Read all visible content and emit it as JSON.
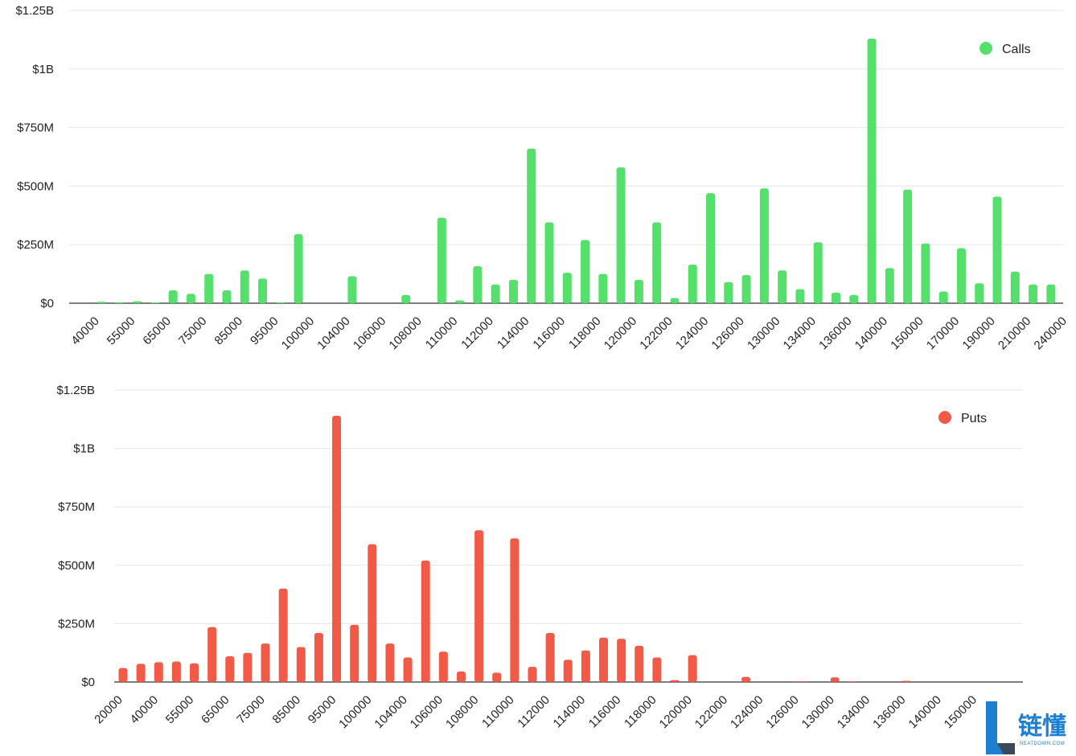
{
  "legend_labels": {
    "calls": "Calls",
    "puts": "Puts"
  },
  "watermark": {
    "text": "链懂",
    "sub": "NEATDOWN.COM"
  },
  "colors": {
    "calls": "#55e06c",
    "puts": "#f05a47",
    "grid": "#e6e6e6",
    "watermark": "#1d7fd1"
  },
  "chart_data": [
    {
      "type": "bar",
      "name": "calls-chart",
      "title": "",
      "ylim": [
        0,
        1250000000
      ],
      "yticks": [
        {
          "value": 0,
          "label": "$0"
        },
        {
          "value": 250000000,
          "label": "$250M"
        },
        {
          "value": 500000000,
          "label": "$500M"
        },
        {
          "value": 750000000,
          "label": "$750M"
        },
        {
          "value": 1000000000,
          "label": "$1B"
        },
        {
          "value": 1250000000,
          "label": "$1.25B"
        }
      ],
      "grid": true,
      "legend": "top-right",
      "xtick_labels": [
        "40000",
        "55000",
        "65000",
        "75000",
        "85000",
        "95000",
        "100000",
        "104000",
        "106000",
        "108000",
        "110000",
        "112000",
        "114000",
        "116000",
        "118000",
        "120000",
        "122000",
        "124000",
        "126000",
        "130000",
        "134000",
        "136000",
        "140000",
        "150000",
        "170000",
        "190000",
        "210000",
        "240000"
      ],
      "series": [
        {
          "name": "Calls",
          "values": [
            6,
            4,
            8,
            3,
            55,
            40,
            125,
            55,
            140,
            105,
            4,
            295,
            0,
            0,
            115,
            0,
            0,
            35,
            0,
            365,
            12,
            158,
            80,
            100,
            660,
            345,
            130,
            270,
            125,
            580,
            100,
            345,
            22,
            165,
            470,
            90,
            120,
            490,
            140,
            60,
            260,
            45,
            35,
            1130,
            150,
            485,
            255,
            50,
            235,
            85,
            455,
            135,
            80,
            80
          ]
        }
      ]
    },
    {
      "type": "bar",
      "name": "puts-chart",
      "title": "",
      "ylim": [
        0,
        1250000000
      ],
      "yticks": [
        {
          "value": 0,
          "label": "$0"
        },
        {
          "value": 250000000,
          "label": "$250M"
        },
        {
          "value": 500000000,
          "label": "$500M"
        },
        {
          "value": 750000000,
          "label": "$750M"
        },
        {
          "value": 1000000000,
          "label": "$1B"
        },
        {
          "value": 1250000000,
          "label": "$1.25B"
        }
      ],
      "grid": true,
      "legend": "top-right",
      "xtick_labels": [
        "20000",
        "40000",
        "55000",
        "65000",
        "75000",
        "85000",
        "95000",
        "100000",
        "104000",
        "106000",
        "108000",
        "110000",
        "112000",
        "114000",
        "116000",
        "118000",
        "120000",
        "122000",
        "124000",
        "126000",
        "130000",
        "134000",
        "136000",
        "140000",
        "150000"
      ],
      "series": [
        {
          "name": "Puts",
          "values": [
            60,
            78,
            85,
            88,
            80,
            235,
            110,
            125,
            165,
            400,
            150,
            210,
            1140,
            245,
            590,
            165,
            105,
            520,
            130,
            45,
            650,
            40,
            615,
            65,
            210,
            95,
            135,
            190,
            185,
            155,
            105,
            8,
            115,
            0,
            0,
            22,
            0,
            0,
            3,
            0,
            20,
            3,
            0,
            0,
            5,
            0,
            0,
            0,
            0,
            0,
            0,
            0,
            0,
            0,
            0,
            0,
            0,
            0,
            0,
            0,
            3,
            3
          ]
        }
      ]
    }
  ]
}
